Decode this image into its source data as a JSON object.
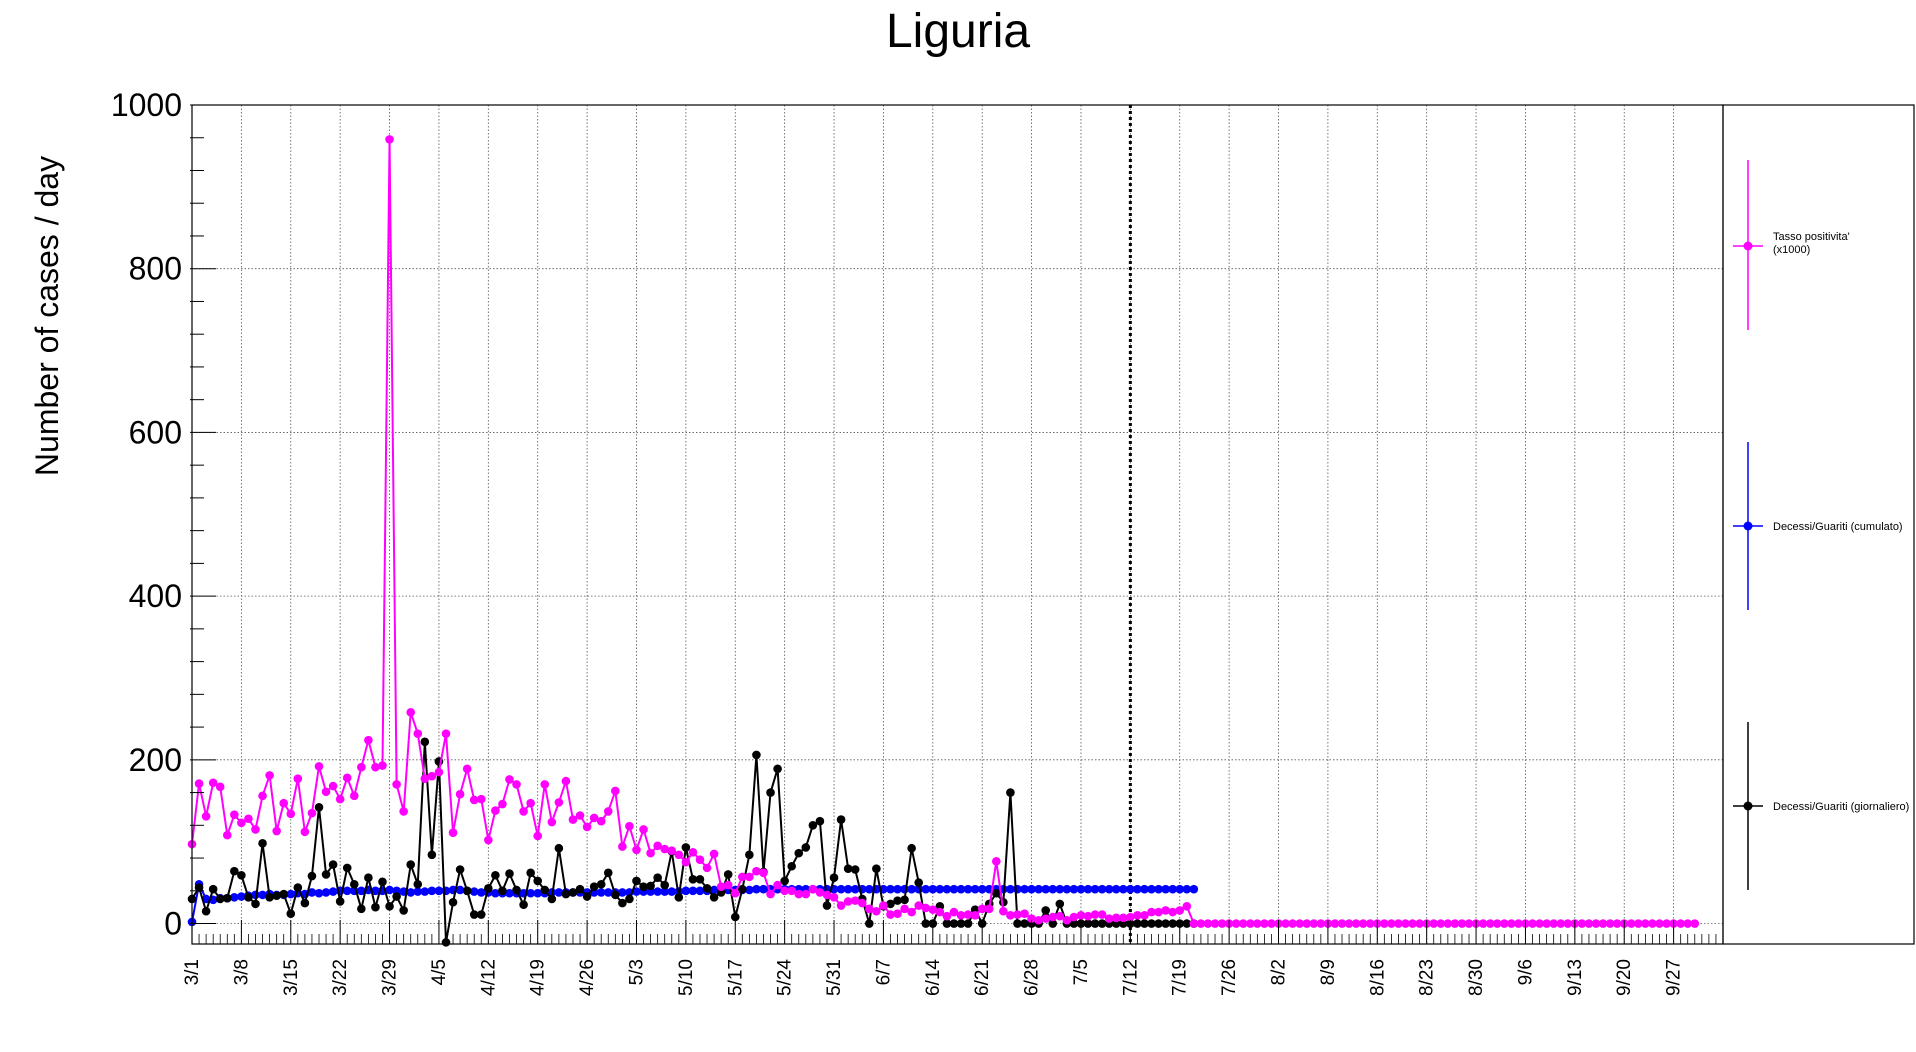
{
  "chart_data": {
    "type": "line",
    "title": "Liguria",
    "xlabel": "",
    "ylabel": "Number of cases / day",
    "ylim": [
      -25,
      1000
    ],
    "yticks": [
      0,
      200,
      400,
      600,
      800,
      1000
    ],
    "xtick_labels": [
      "3/1",
      "3/8",
      "3/15",
      "3/22",
      "3/29",
      "4/5",
      "4/12",
      "4/19",
      "4/26",
      "5/3",
      "5/10",
      "5/17",
      "5/24",
      "5/31",
      "6/7",
      "6/14",
      "6/21",
      "6/28",
      "7/5",
      "7/12",
      "7/19",
      "7/26",
      "8/2",
      "8/9",
      "8/16",
      "8/23",
      "8/30",
      "9/6",
      "9/13",
      "9/20",
      "9/27"
    ],
    "first_day": "3/1",
    "last_day": "10/4",
    "last_data_day": "7/12",
    "grid": true,
    "legend_position": "right",
    "series": [
      {
        "name": "Tasso positivita' (x1000)",
        "color": "#ff00ff",
        "values": [
          97,
          171,
          131,
          172,
          167,
          108,
          133,
          123,
          128,
          115,
          156,
          181,
          113,
          147,
          134,
          177,
          112,
          135,
          192,
          161,
          168,
          152,
          178,
          156,
          191,
          224,
          191,
          193,
          958,
          170,
          137,
          258,
          232,
          177,
          180,
          185,
          232,
          111,
          158,
          189,
          151,
          152,
          102,
          138,
          146,
          176,
          170,
          137,
          147,
          107,
          170,
          124,
          148,
          174,
          127,
          132,
          118,
          129,
          125,
          137,
          162,
          94,
          119,
          90,
          115,
          86,
          95,
          91,
          89,
          84,
          75,
          87,
          78,
          68,
          85,
          45,
          47,
          37,
          57,
          57,
          64,
          62,
          36,
          47,
          40,
          40,
          36,
          36,
          42,
          38,
          35,
          32,
          22,
          27,
          28,
          25,
          18,
          15,
          22,
          11,
          12,
          18,
          14,
          22,
          19,
          17,
          14,
          9,
          14,
          10,
          11,
          10,
          18,
          18,
          76,
          15,
          10,
          11,
          12,
          6,
          4,
          6,
          8,
          9,
          4,
          8,
          10,
          9,
          11,
          11,
          6,
          7,
          7,
          8,
          10,
          10,
          14,
          14,
          16,
          14,
          16,
          21,
          0,
          0,
          0,
          0,
          0,
          0,
          0,
          0,
          0,
          0,
          0,
          0,
          0,
          0,
          0,
          0,
          0,
          0,
          0,
          0,
          0,
          0,
          0,
          0,
          0,
          0,
          0,
          0,
          0,
          0,
          0,
          0,
          0,
          0,
          0,
          0,
          0,
          0,
          0,
          0,
          0,
          0,
          0,
          0,
          0,
          0,
          0,
          0,
          0,
          0,
          0,
          0,
          0,
          0,
          0,
          0,
          0,
          0,
          0,
          0,
          0,
          0,
          0,
          0,
          0,
          0,
          0,
          0,
          0,
          0,
          0,
          0
        ]
      },
      {
        "name": "Decessi/Guariti (cumulato)",
        "color": "#0000ff",
        "values": [
          2,
          48,
          30,
          29,
          31,
          31,
          32,
          33,
          34,
          35,
          35,
          36,
          35,
          35,
          36,
          37,
          36,
          38,
          37,
          38,
          39,
          40,
          40,
          40,
          40,
          41,
          40,
          40,
          41,
          40,
          39,
          38,
          39,
          39,
          40,
          40,
          40,
          41,
          41,
          40,
          39,
          38,
          38,
          37,
          37,
          37,
          37,
          37,
          37,
          37,
          37,
          38,
          38,
          38,
          38,
          38,
          38,
          38,
          38,
          38,
          38,
          38,
          38,
          39,
          39,
          39,
          39,
          39,
          39,
          39,
          40,
          40,
          40,
          40,
          41,
          41,
          41,
          41,
          41,
          41,
          42,
          42,
          42,
          42,
          42,
          42,
          42,
          42,
          42,
          42,
          42,
          42,
          42,
          42,
          42,
          42,
          42,
          42,
          42,
          42,
          42,
          42,
          42,
          42,
          42,
          42,
          42,
          42,
          42,
          42,
          42,
          42,
          42,
          42,
          42,
          42,
          42,
          42,
          42,
          42,
          42,
          42,
          42,
          42,
          42,
          42,
          42,
          42,
          42,
          42,
          42,
          42,
          42,
          42,
          42,
          42,
          42,
          42,
          42,
          42,
          42,
          42,
          42
        ]
      },
      {
        "name": "Decessi/Guariti (giornaliero)",
        "color": "#000000",
        "values": [
          30,
          44,
          15,
          42,
          30,
          31,
          64,
          59,
          32,
          24,
          98,
          32,
          34,
          36,
          12,
          44,
          25,
          58,
          142,
          60,
          72,
          27,
          68,
          48,
          18,
          56,
          20,
          51,
          21,
          33,
          16,
          72,
          48,
          222,
          84,
          198,
          -23,
          26,
          66,
          40,
          11,
          11,
          43,
          59,
          40,
          61,
          41,
          23,
          62,
          52,
          41,
          30,
          92,
          36,
          38,
          42,
          33,
          45,
          48,
          62,
          35,
          25,
          30,
          52,
          45,
          46,
          56,
          47,
          88,
          32,
          93,
          54,
          54,
          43,
          32,
          38,
          60,
          8,
          42,
          84,
          206,
          63,
          160,
          189,
          52,
          70,
          86,
          93,
          120,
          125,
          22,
          56,
          127,
          67,
          66,
          30,
          0,
          67,
          21,
          24,
          28,
          29,
          92,
          50,
          0,
          0,
          21,
          0,
          0,
          0,
          0,
          17,
          0,
          24,
          37,
          26,
          160,
          0,
          0,
          0,
          0,
          16,
          0,
          24,
          0,
          0,
          0,
          0,
          0,
          0,
          0,
          0,
          0,
          0,
          0,
          0,
          0,
          0,
          0,
          0,
          0,
          0,
          0
        ]
      }
    ]
  }
}
